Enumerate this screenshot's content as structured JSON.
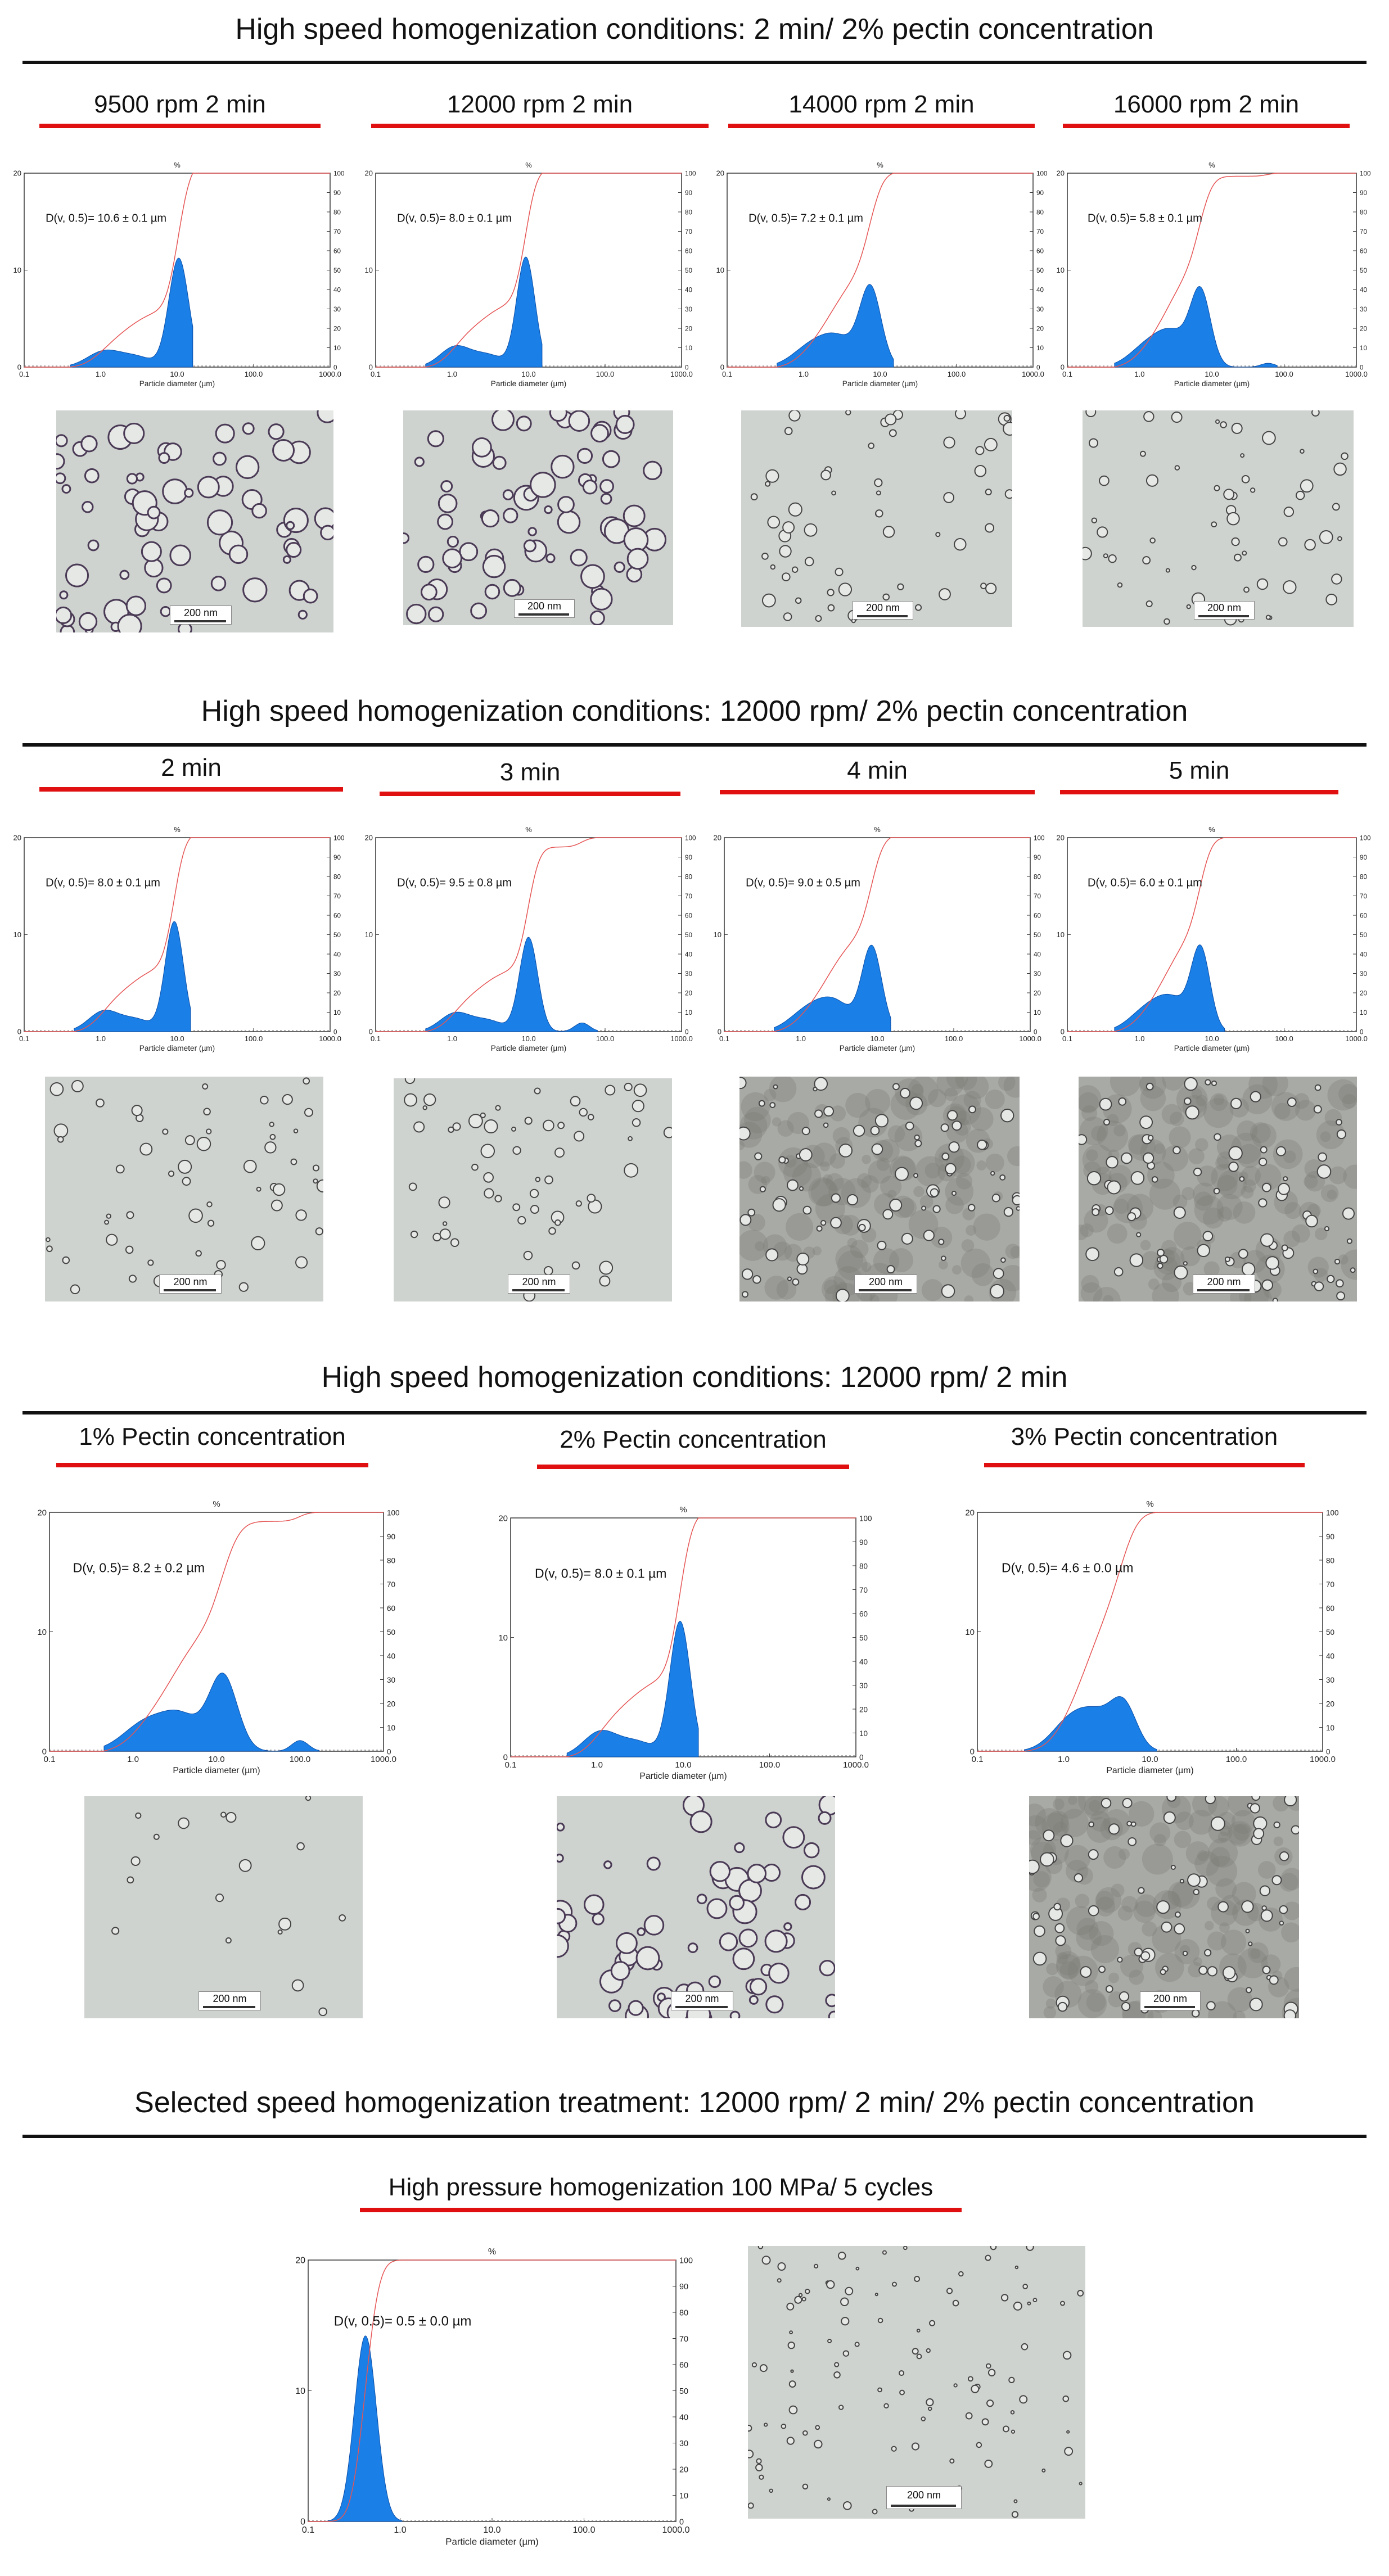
{
  "sections": [
    {
      "title": "High speed homogenization conditions: 2 min/ 2% pectin concentration"
    },
    {
      "title": "High speed homogenization conditions: 12000 rpm/ 2% pectin concentration"
    },
    {
      "title": "High speed homogenization conditions: 12000 rpm/ 2 min"
    },
    {
      "title": "Selected speed homogenization treatment: 12000 rpm/ 2 min/ 2% pectin concentration"
    }
  ],
  "axis": {
    "xlabel": "Particle diameter (µm)",
    "y2label": "%",
    "x_ticks": [
      "0.1",
      "1.0",
      "10.0",
      "100.0",
      "1000.0"
    ],
    "y_ticks": [
      "0",
      "10",
      "20"
    ],
    "y2_ticks": [
      "0",
      "10",
      "20",
      "30",
      "40",
      "50",
      "60",
      "70",
      "80",
      "90",
      "100"
    ]
  },
  "scale_bar_label": "200 nm",
  "colors": {
    "distribution_fill": "#1a7fe6",
    "cumulative_line": "#e65555",
    "title_rule": "#e01010"
  },
  "chart_data": [
    {
      "id": "c1",
      "section": 0,
      "type": "area",
      "panel_title": "9500 rpm 2 min",
      "annotation": "D(v, 0.5)= 10.6 ± 0.1 µm",
      "xscale": "log",
      "xlim": [
        0.1,
        1000
      ],
      "ylim": [
        0,
        20
      ],
      "y2lim": [
        0,
        100
      ],
      "peaks": [
        {
          "x": 1.1,
          "h": 1.6,
          "w": 0.22
        },
        {
          "x": 3.0,
          "h": 1.0,
          "w": 0.22
        },
        {
          "x": 10.5,
          "h": 11.2,
          "w": 0.13
        }
      ],
      "x_range": [
        0.4,
        16
      ],
      "grain": "coarse"
    },
    {
      "id": "c2",
      "section": 0,
      "type": "area",
      "panel_title": "12000 rpm 2 min",
      "annotation": "D(v, 0.5)= 8.0 ± 0.1 µm",
      "xscale": "log",
      "xlim": [
        0.1,
        1000
      ],
      "ylim": [
        0,
        20
      ],
      "y2lim": [
        0,
        100
      ],
      "peaks": [
        {
          "x": 1.1,
          "h": 2.1,
          "w": 0.2
        },
        {
          "x": 3.0,
          "h": 1.2,
          "w": 0.2
        },
        {
          "x": 9.2,
          "h": 11.3,
          "w": 0.12
        }
      ],
      "x_range": [
        0.45,
        15
      ],
      "grain": "coarse"
    },
    {
      "id": "c3",
      "section": 0,
      "type": "area",
      "panel_title": "14000 rpm 2 min",
      "annotation": "D(v, 0.5)= 7.2 ± 0.1 µm",
      "xscale": "log",
      "xlim": [
        0.1,
        1000
      ],
      "ylim": [
        0,
        20
      ],
      "y2lim": [
        0,
        100
      ],
      "peaks": [
        {
          "x": 1.3,
          "h": 2.2,
          "w": 0.25
        },
        {
          "x": 3.0,
          "h": 2.5,
          "w": 0.22
        },
        {
          "x": 7.5,
          "h": 8.0,
          "w": 0.14
        }
      ],
      "x_range": [
        0.45,
        15
      ],
      "grain": "medium"
    },
    {
      "id": "c4",
      "section": 0,
      "type": "area",
      "panel_title": "16000 rpm 2 min",
      "annotation": "D(v, 0.5)= 5.8 ± 0.1 µm",
      "xscale": "log",
      "xlim": [
        0.1,
        1000
      ],
      "ylim": [
        0,
        20
      ],
      "y2lim": [
        0,
        100
      ],
      "peaks": [
        {
          "x": 1.3,
          "h": 2.2,
          "w": 0.25
        },
        {
          "x": 3.0,
          "h": 3.0,
          "w": 0.22
        },
        {
          "x": 7.0,
          "h": 7.5,
          "w": 0.14
        },
        {
          "x": 60,
          "h": 0.4,
          "w": 0.1
        }
      ],
      "x_range": [
        0.45,
        80
      ],
      "grain": "medium"
    },
    {
      "id": "c5",
      "section": 1,
      "type": "area",
      "panel_title": "2 min",
      "annotation": "D(v, 0.5)= 8.0 ± 0.1 µm",
      "xscale": "log",
      "xlim": [
        0.1,
        1000
      ],
      "ylim": [
        0,
        20
      ],
      "y2lim": [
        0,
        100
      ],
      "peaks": [
        {
          "x": 1.1,
          "h": 2.1,
          "w": 0.2
        },
        {
          "x": 3.0,
          "h": 1.2,
          "w": 0.2
        },
        {
          "x": 9.2,
          "h": 11.3,
          "w": 0.12
        }
      ],
      "x_range": [
        0.45,
        15
      ],
      "grain": "medium"
    },
    {
      "id": "c6",
      "section": 1,
      "type": "area",
      "panel_title": "3 min",
      "annotation": "D(v, 0.5)= 9.5 ± 0.8 µm",
      "xscale": "log",
      "xlim": [
        0.1,
        1000
      ],
      "ylim": [
        0,
        20
      ],
      "y2lim": [
        0,
        100
      ],
      "peaks": [
        {
          "x": 1.1,
          "h": 1.9,
          "w": 0.2
        },
        {
          "x": 3.0,
          "h": 1.1,
          "w": 0.2
        },
        {
          "x": 10.0,
          "h": 9.7,
          "w": 0.12
        },
        {
          "x": 50,
          "h": 0.9,
          "w": 0.1
        }
      ],
      "x_range": [
        0.45,
        80
      ],
      "grain": "medium"
    },
    {
      "id": "c7",
      "section": 1,
      "type": "area",
      "panel_title": "4 min",
      "annotation": "D(v, 0.5)= 9.0 ± 0.5 µm",
      "xscale": "log",
      "xlim": [
        0.1,
        1000
      ],
      "ylim": [
        0,
        20
      ],
      "y2lim": [
        0,
        100
      ],
      "peaks": [
        {
          "x": 1.3,
          "h": 2.3,
          "w": 0.25
        },
        {
          "x": 3.0,
          "h": 2.5,
          "w": 0.22
        },
        {
          "x": 8.5,
          "h": 8.6,
          "w": 0.13
        }
      ],
      "x_range": [
        0.45,
        15
      ],
      "grain": "dense"
    },
    {
      "id": "c8",
      "section": 1,
      "type": "area",
      "panel_title": "5 min",
      "annotation": "D(v, 0.5)= 6.0 ± 0.1 µm",
      "xscale": "log",
      "xlim": [
        0.1,
        1000
      ],
      "ylim": [
        0,
        20
      ],
      "y2lim": [
        0,
        100
      ],
      "peaks": [
        {
          "x": 1.3,
          "h": 2.3,
          "w": 0.25
        },
        {
          "x": 3.0,
          "h": 2.8,
          "w": 0.22
        },
        {
          "x": 7.0,
          "h": 8.2,
          "w": 0.13
        }
      ],
      "x_range": [
        0.45,
        15
      ],
      "grain": "dense"
    },
    {
      "id": "c9",
      "section": 2,
      "type": "area",
      "panel_title": "1% Pectin concentration",
      "annotation": "D(v, 0.5)= 8.2 ± 0.2 µm",
      "xscale": "log",
      "xlim": [
        0.1,
        1000
      ],
      "ylim": [
        0,
        20
      ],
      "y2lim": [
        0,
        100
      ],
      "peaks": [
        {
          "x": 1.5,
          "h": 2.5,
          "w": 0.28
        },
        {
          "x": 4.0,
          "h": 2.4,
          "w": 0.22
        },
        {
          "x": 12.0,
          "h": 6.3,
          "w": 0.17
        },
        {
          "x": 100,
          "h": 0.9,
          "w": 0.1
        }
      ],
      "x_range": [
        0.45,
        170
      ],
      "grain": "sparse"
    },
    {
      "id": "c10",
      "section": 2,
      "type": "area",
      "panel_title": "2% Pectin concentration",
      "annotation": "D(v, 0.5)= 8.0 ± 0.1 µm",
      "xscale": "log",
      "xlim": [
        0.1,
        1000
      ],
      "ylim": [
        0,
        20
      ],
      "y2lim": [
        0,
        100
      ],
      "peaks": [
        {
          "x": 1.1,
          "h": 2.1,
          "w": 0.2
        },
        {
          "x": 3.0,
          "h": 1.2,
          "w": 0.2
        },
        {
          "x": 9.2,
          "h": 11.3,
          "w": 0.12
        }
      ],
      "x_range": [
        0.45,
        15
      ],
      "grain": "coarse"
    },
    {
      "id": "c11",
      "section": 2,
      "type": "area",
      "panel_title": "3% Pectin concentration",
      "annotation": "D(v, 0.5)= 4.6 ± 0.0 µm",
      "xscale": "log",
      "xlim": [
        0.1,
        1000
      ],
      "ylim": [
        0,
        20
      ],
      "y2lim": [
        0,
        100
      ],
      "peaks": [
        {
          "x": 1.2,
          "h": 2.5,
          "w": 0.22
        },
        {
          "x": 2.5,
          "h": 2.4,
          "w": 0.2
        },
        {
          "x": 5.0,
          "h": 3.6,
          "w": 0.15
        }
      ],
      "x_range": [
        0.35,
        12
      ],
      "grain": "dense"
    },
    {
      "id": "c12",
      "section": 3,
      "type": "area",
      "panel_title": "High pressure homogenization 100 MPa/ 5 cycles",
      "annotation": "D(v, 0.5)= 0.5 ± 0.0 µm",
      "xscale": "log",
      "xlim": [
        0.1,
        1000
      ],
      "ylim": [
        0,
        20
      ],
      "y2lim": [
        0,
        100
      ],
      "peaks": [
        {
          "x": 0.42,
          "h": 14.2,
          "w": 0.12
        }
      ],
      "x_range": [
        0.13,
        1.05
      ],
      "grain": "fine"
    }
  ]
}
